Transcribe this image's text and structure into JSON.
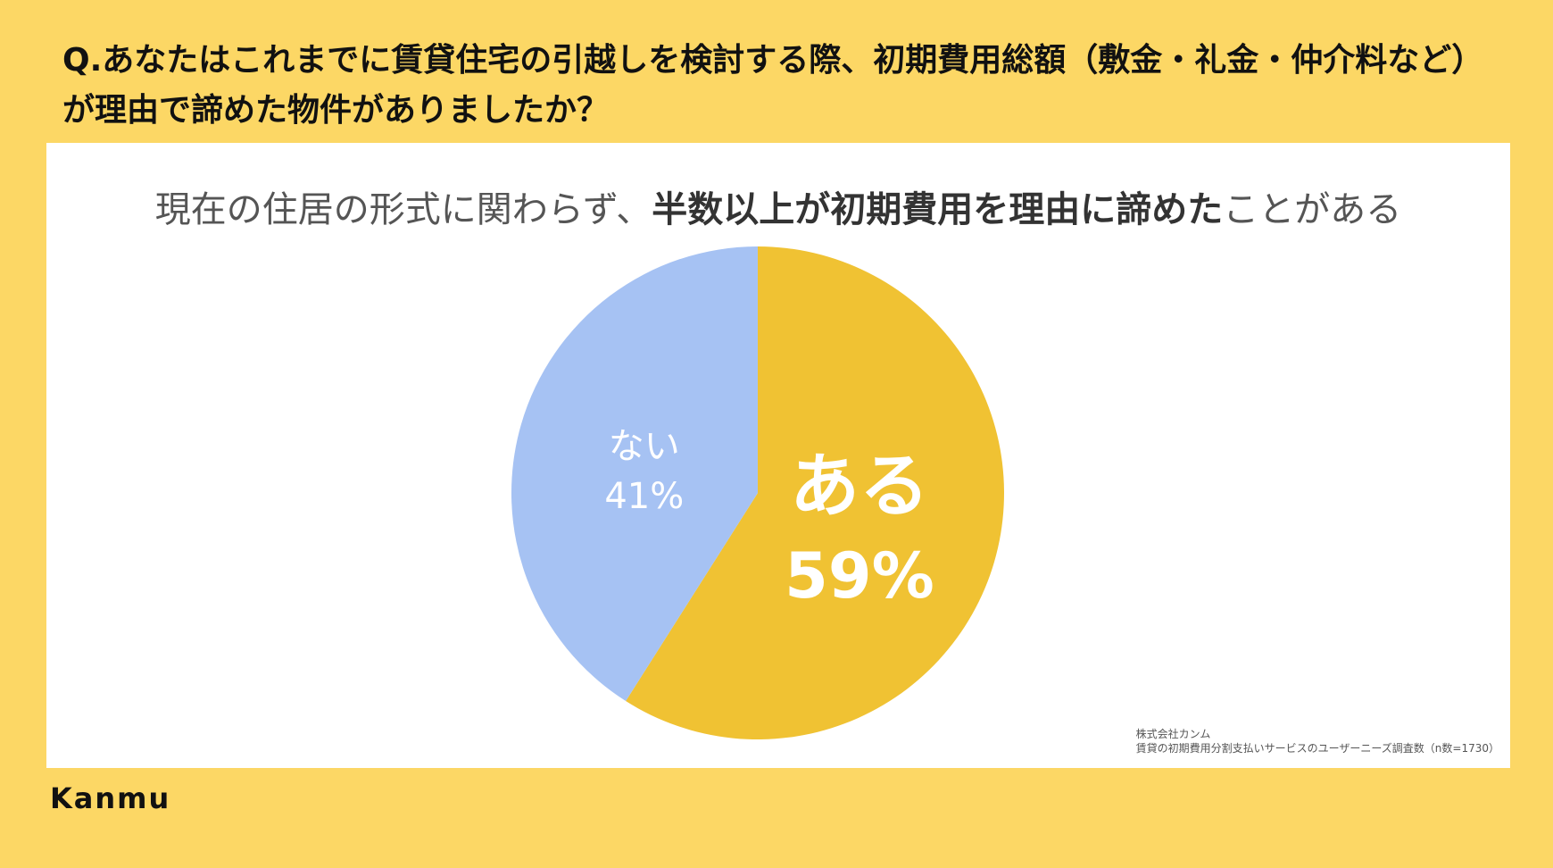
{
  "question": "Q.あなたはこれまでに賃貸住宅の引越しを検討する際、初期費用総額（敷金・礼金・仲介料など）が理由で諦めた物件がありましたか？",
  "subtitle": {
    "pre": "現在の住居の形式に関わらず、",
    "bold": "半数以上が初期費用を理由に諦めた",
    "post": "ことがある"
  },
  "chart_data": {
    "type": "pie",
    "categories": [
      "ある",
      "ない"
    ],
    "values": [
      59,
      41
    ],
    "unit": "%",
    "colors": [
      "#F0C233",
      "#A6C2F3"
    ],
    "labels": [
      {
        "name": "ある",
        "value": "59%"
      },
      {
        "name": "ない",
        "value": "41%"
      }
    ]
  },
  "source": {
    "line1": "株式会社カンム",
    "line2": "賃貸の初期費用分割支払いサービスのユーザーニーズ調査数（n数=1730）"
  },
  "logo": "Kanmu"
}
